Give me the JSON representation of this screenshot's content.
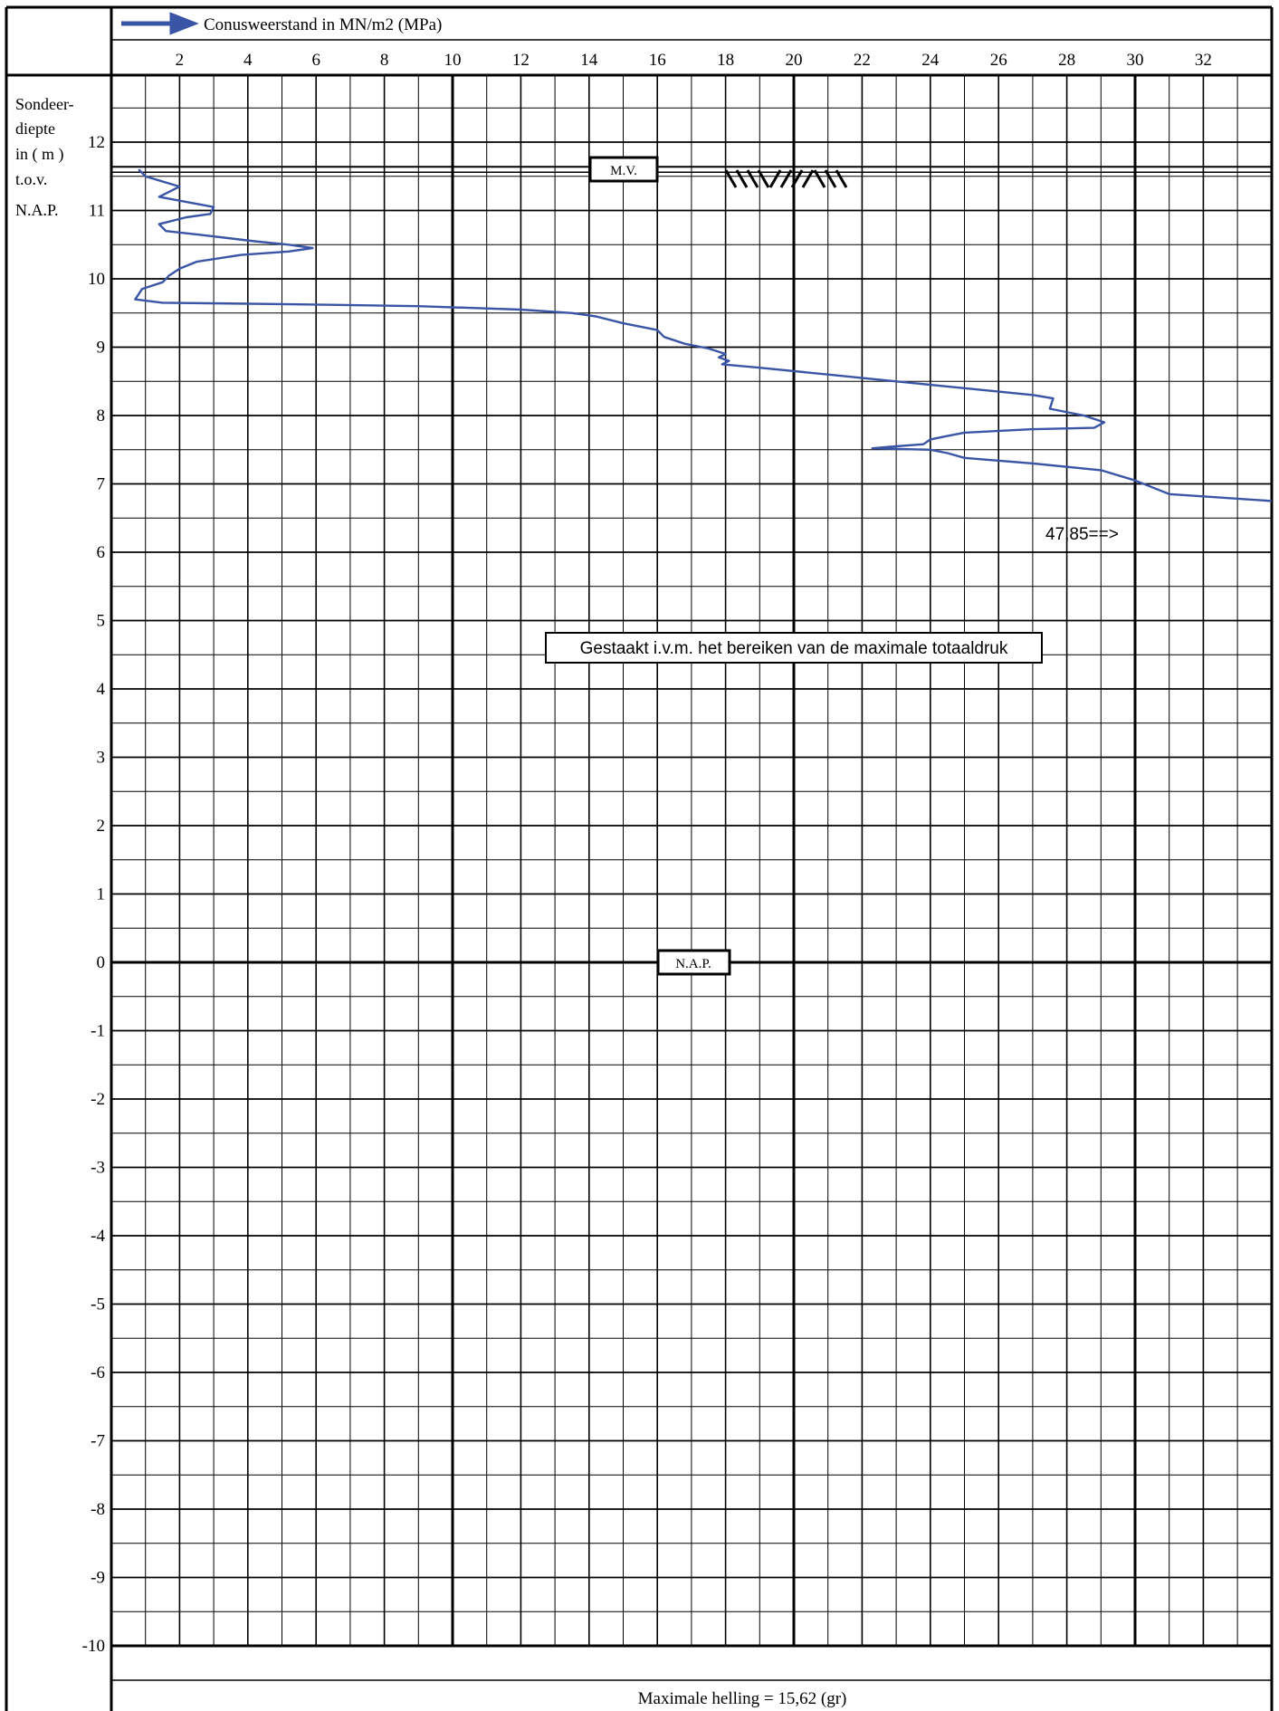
{
  "chart_data": {
    "type": "line",
    "title": "Conusweerstand in MN/m2 (MPa)",
    "ylabel_lines": [
      "Sondeer-",
      "diepte",
      "in ( m )",
      "t.o.v.",
      "N.A.P."
    ],
    "xlim": [
      0,
      34
    ],
    "ylim": [
      -10,
      13
    ],
    "x_ticks": [
      2,
      4,
      6,
      8,
      10,
      12,
      14,
      16,
      18,
      20,
      22,
      24,
      26,
      28,
      30,
      32
    ],
    "y_ticks": [
      12,
      11,
      10,
      9,
      8,
      7,
      6,
      5,
      4,
      3,
      2,
      1,
      0,
      -1,
      -2,
      -3,
      -4,
      -5,
      -6,
      -7,
      -8,
      -9,
      -10
    ],
    "grid": true,
    "series": [
      {
        "color": "#3a55a6",
        "points": [
          [
            0.8,
            11.6
          ],
          [
            1.0,
            11.5
          ],
          [
            2.0,
            11.35
          ],
          [
            1.4,
            11.2
          ],
          [
            3.0,
            11.05
          ],
          [
            2.9,
            10.95
          ],
          [
            2.2,
            10.9
          ],
          [
            1.4,
            10.8
          ],
          [
            1.6,
            10.7
          ],
          [
            2.5,
            10.65
          ],
          [
            4.2,
            10.55
          ],
          [
            5.2,
            10.5
          ],
          [
            5.9,
            10.45
          ],
          [
            5.2,
            10.4
          ],
          [
            3.8,
            10.35
          ],
          [
            2.5,
            10.25
          ],
          [
            2.0,
            10.15
          ],
          [
            1.7,
            10.05
          ],
          [
            1.5,
            9.95
          ],
          [
            1.2,
            9.9
          ],
          [
            0.9,
            9.85
          ],
          [
            0.7,
            9.7
          ],
          [
            1.5,
            9.65
          ],
          [
            5.0,
            9.63
          ],
          [
            9.0,
            9.6
          ],
          [
            12.0,
            9.55
          ],
          [
            13.5,
            9.5
          ],
          [
            14.2,
            9.45
          ],
          [
            15.0,
            9.35
          ],
          [
            16.0,
            9.25
          ],
          [
            16.2,
            9.15
          ],
          [
            16.8,
            9.05
          ],
          [
            17.5,
            8.98
          ],
          [
            18.0,
            8.9
          ],
          [
            17.8,
            8.85
          ],
          [
            18.1,
            8.8
          ],
          [
            17.9,
            8.75
          ],
          [
            19.0,
            8.7
          ],
          [
            21.0,
            8.6
          ],
          [
            23.0,
            8.5
          ],
          [
            25.0,
            8.4
          ],
          [
            27.0,
            8.3
          ],
          [
            27.6,
            8.25
          ],
          [
            27.5,
            8.1
          ],
          [
            28.5,
            8.0
          ],
          [
            29.1,
            7.9
          ],
          [
            28.8,
            7.82
          ],
          [
            27.0,
            7.8
          ],
          [
            25.0,
            7.75
          ],
          [
            24.5,
            7.7
          ],
          [
            24.0,
            7.65
          ],
          [
            23.8,
            7.58
          ],
          [
            23.0,
            7.55
          ],
          [
            22.3,
            7.52
          ],
          [
            24.0,
            7.5
          ],
          [
            24.5,
            7.45
          ],
          [
            25.0,
            7.38
          ],
          [
            27.0,
            7.3
          ],
          [
            29.0,
            7.2
          ],
          [
            30.0,
            7.05
          ],
          [
            31.0,
            6.85
          ],
          [
            34.0,
            6.75
          ]
        ]
      }
    ],
    "annotations": {
      "mv_label": "M.V.",
      "mv_level": 11.6,
      "nap_label": "N.A.P.",
      "nap_level": 0,
      "overflow_note": "47,85==>",
      "stop_note": "Gestaakt i.v.m. het bereiken van de maximale totaaldruk",
      "footer": "Maximale helling = 15,62 (gr)"
    }
  }
}
